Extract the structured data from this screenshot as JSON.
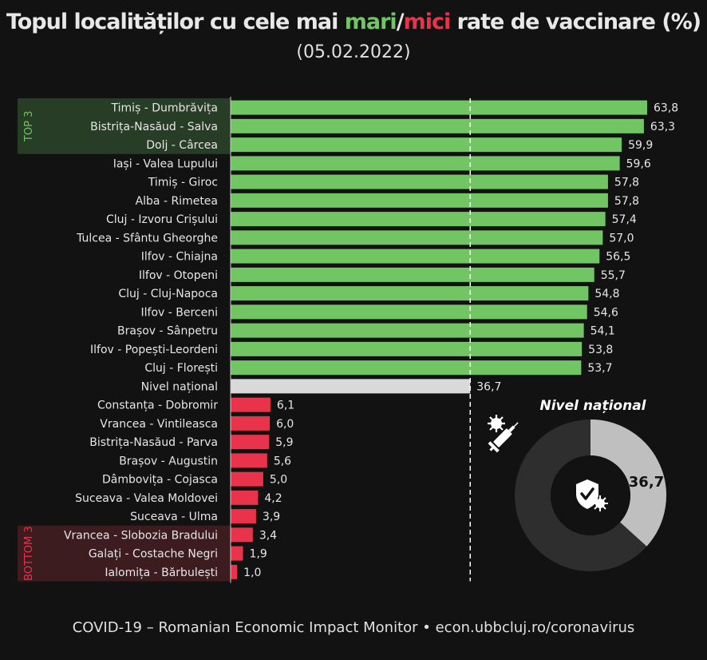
{
  "title": {
    "before": "Topul localităților cu cele mai ",
    "high_word": "mari",
    "separator": "/",
    "low_word": "mici",
    "after": " rate de vaccinare (%)"
  },
  "subtitle": "(05.02.2022)",
  "footer": "COVID-19 – Romanian Economic Impact Monitor • econ.ubbcluj.ro/coronavirus",
  "colors": {
    "top": "#71c663",
    "bottom": "#e8334a",
    "national": "#d9d9d9",
    "background": "#121212",
    "donut_dark": "#2e2e2e",
    "donut_light": "#bfbfbf"
  },
  "chart_data": {
    "type": "bar",
    "orientation": "horizontal",
    "categories": [
      "Timiș - Dumbrăvița",
      "Bistrița-Nasăud - Salva",
      "Dolj - Cârcea",
      "Iași - Valea Lupului",
      "Timiș - Giroc",
      "Alba - Rimetea",
      "Cluj - Izvoru Crișului",
      "Tulcea - Sfântu Gheorghe",
      "Ilfov - Chiajna",
      "Ilfov - Otopeni",
      "Cluj - Cluj-Napoca",
      "Ilfov - Berceni",
      "Brașov - Sânpetru",
      "Ilfov - Popești-Leordeni",
      "Cluj - Florești",
      "Nivel național",
      "Constanța - Dobromir",
      "Vrancea - Vintileasca",
      "Bistrița-Nasăud - Parva",
      "Brașov - Augustin",
      "Dâmbovița - Cojasca",
      "Suceava - Valea Moldovei",
      "Suceava - Ulma",
      "Vrancea - Slobozia Bradului",
      "Galați - Costache Negri",
      "Ialomița - Bărbulești"
    ],
    "values": [
      63.8,
      63.3,
      59.9,
      59.6,
      57.8,
      57.8,
      57.4,
      57.0,
      56.5,
      55.7,
      54.8,
      54.6,
      54.1,
      53.8,
      53.7,
      36.7,
      6.1,
      6.0,
      5.9,
      5.6,
      5.0,
      4.2,
      3.9,
      3.4,
      1.9,
      1.0
    ],
    "value_labels": [
      "63,8",
      "63,3",
      "59,9",
      "59,6",
      "57,8",
      "57,8",
      "57,4",
      "57,0",
      "56,5",
      "55,7",
      "54,8",
      "54,6",
      "54,1",
      "53,8",
      "53,7",
      "36,7",
      "6,1",
      "6,0",
      "5,9",
      "5,6",
      "5,0",
      "4,2",
      "3,9",
      "3,4",
      "1,9",
      "1,0"
    ],
    "groups": [
      "top",
      "top",
      "top",
      "top",
      "top",
      "top",
      "top",
      "top",
      "top",
      "top",
      "top",
      "top",
      "top",
      "top",
      "top",
      "national",
      "bottom",
      "bottom",
      "bottom",
      "bottom",
      "bottom",
      "bottom",
      "bottom",
      "bottom",
      "bottom",
      "bottom"
    ],
    "reference_line": 36.7,
    "xlim": [
      0,
      65
    ],
    "grid": false,
    "highlight_labels": {
      "top": "TOP 3",
      "bottom": "BOTTOM 3"
    },
    "inset": {
      "type": "pie",
      "title": "Nivel național",
      "value": 36.7,
      "value_label": "36,7",
      "total": 100
    }
  },
  "icons": [
    "virus-syringe-icon",
    "shield-check-virus-icon"
  ]
}
